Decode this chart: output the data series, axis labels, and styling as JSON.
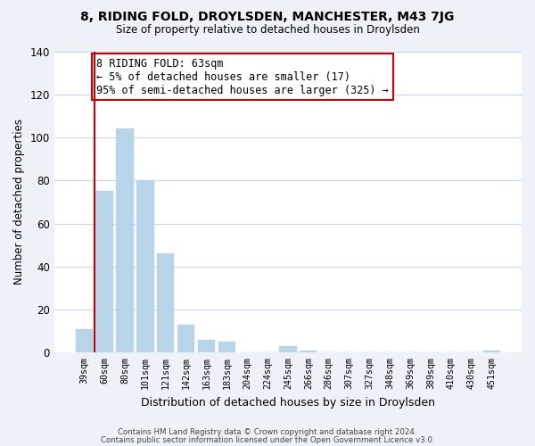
{
  "title": "8, RIDING FOLD, DROYLSDEN, MANCHESTER, M43 7JG",
  "subtitle": "Size of property relative to detached houses in Droylsden",
  "xlabel": "Distribution of detached houses by size in Droylsden",
  "ylabel": "Number of detached properties",
  "bar_labels": [
    "39sqm",
    "60sqm",
    "80sqm",
    "101sqm",
    "121sqm",
    "142sqm",
    "163sqm",
    "183sqm",
    "204sqm",
    "224sqm",
    "245sqm",
    "266sqm",
    "286sqm",
    "307sqm",
    "327sqm",
    "348sqm",
    "369sqm",
    "389sqm",
    "410sqm",
    "430sqm",
    "451sqm"
  ],
  "bar_values": [
    11,
    75,
    104,
    80,
    46,
    13,
    6,
    5,
    0,
    0,
    3,
    1,
    0,
    0,
    0,
    0,
    0,
    0,
    0,
    0,
    1
  ],
  "bar_color": "#b8d4e8",
  "annotation_text": "8 RIDING FOLD: 63sqm\n← 5% of detached houses are smaller (17)\n95% of semi-detached houses are larger (325) →",
  "annotation_box_edge_color": "#cc0000",
  "vline_color": "#cc0000",
  "ylim": [
    0,
    140
  ],
  "yticks": [
    0,
    20,
    40,
    60,
    80,
    100,
    120,
    140
  ],
  "footer_line1": "Contains HM Land Registry data © Crown copyright and database right 2024.",
  "footer_line2": "Contains public sector information licensed under the Open Government Licence v3.0.",
  "bg_color": "#eef2f8",
  "plot_bg_color": "#ffffff",
  "grid_color": "#c8d8e8"
}
